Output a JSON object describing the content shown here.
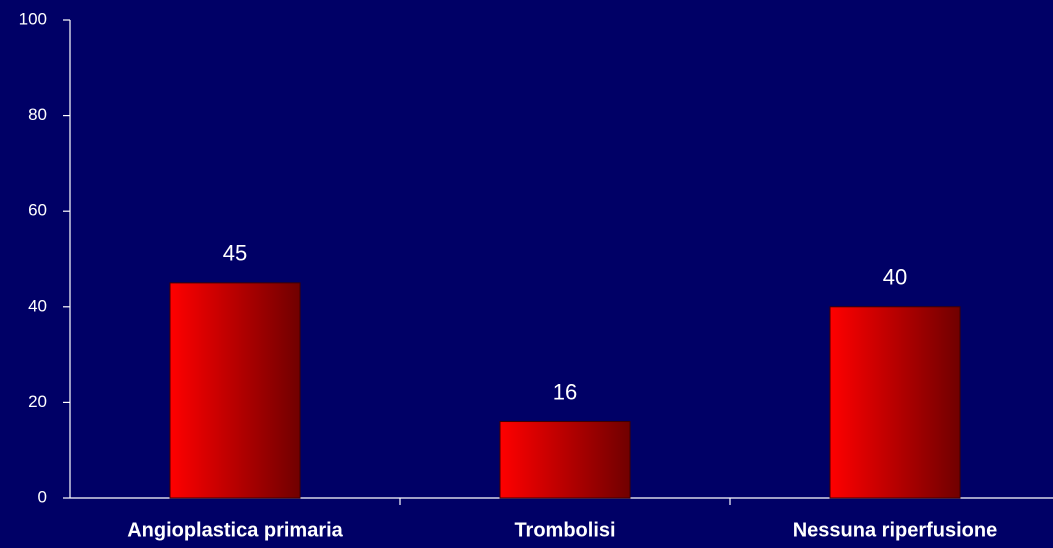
{
  "chart_data": {
    "type": "bar",
    "categories": [
      "Angioplastica primaria",
      "Trombolisi",
      "Nessuna riperfusione"
    ],
    "values": [
      45,
      16,
      40
    ],
    "color": "#ff0000",
    "ylim": [
      0,
      100
    ],
    "yticks": [
      0,
      20,
      40,
      60,
      80,
      100
    ],
    "grid": false
  }
}
